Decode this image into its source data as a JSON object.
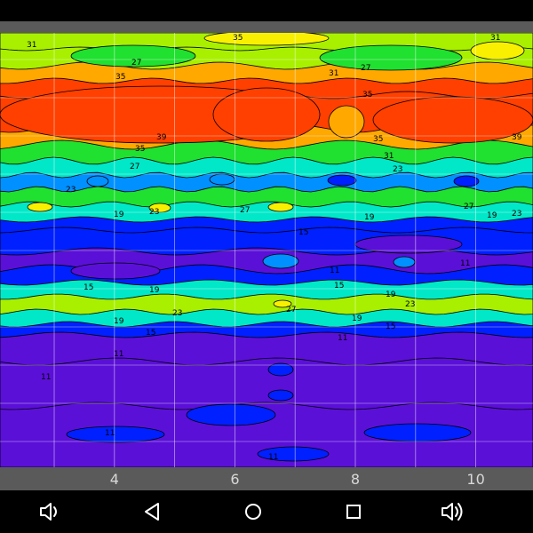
{
  "chart_data": {
    "type": "heatmap",
    "plot_style": "filled-contour",
    "title": "",
    "xlabel": "",
    "ylabel": "",
    "x_ticks": [
      4,
      6,
      8,
      10
    ],
    "xlim": [
      2.1,
      10.95
    ],
    "grid": true,
    "colors_low_to_high": [
      "#5b10d8",
      "#0020ff",
      "#0090ff",
      "#00e8c8",
      "#20e030",
      "#a8f000",
      "#f8f000",
      "#ffa800",
      "#ff4000"
    ],
    "bands": [
      {
        "name": "b0",
        "value": 31,
        "color": "#a8f000"
      },
      {
        "name": "b1",
        "value": 31,
        "color": "#a8f000"
      },
      {
        "name": "b2",
        "value": 35,
        "color": "#ffa800"
      },
      {
        "name": "b3",
        "value": 39,
        "color": "#ff4000"
      },
      {
        "name": "b4",
        "value": 39,
        "color": "#ff4000"
      },
      {
        "name": "b5",
        "value": 35,
        "color": "#ffa800"
      },
      {
        "name": "b6",
        "value": 27,
        "color": "#20e030"
      },
      {
        "name": "b7",
        "value": 23,
        "color": "#00e8c8"
      },
      {
        "name": "b8",
        "value": 19,
        "color": "#0090ff"
      },
      {
        "name": "b9",
        "value": 23,
        "color": "#20e030"
      },
      {
        "name": "b10",
        "value": 19,
        "color": "#00e8c8"
      },
      {
        "name": "b11",
        "value": 15,
        "color": "#0020ff"
      },
      {
        "name": "b12",
        "value": 15,
        "color": "#0020ff"
      },
      {
        "name": "b13",
        "value": 11,
        "color": "#5b10d8"
      },
      {
        "name": "b14",
        "value": 15,
        "color": "#0020ff"
      },
      {
        "name": "b15",
        "value": 19,
        "color": "#00e8c8"
      },
      {
        "name": "b16",
        "value": 23,
        "color": "#a8f000"
      },
      {
        "name": "b17",
        "value": 19,
        "color": "#00e8c8"
      },
      {
        "name": "b18",
        "value": 15,
        "color": "#0020ff"
      },
      {
        "name": "b19",
        "value": 11,
        "color": "#5b10d8"
      },
      {
        "name": "b20",
        "value": 11,
        "color": "#5b10d8"
      },
      {
        "name": "b21",
        "value": 11,
        "color": "#5b10d8"
      }
    ],
    "blobs": [
      {
        "name": "yellow-top-right",
        "color": "#f8f000"
      },
      {
        "name": "yellow-top-mid",
        "color": "#f8f000"
      },
      {
        "name": "green-top-left",
        "color": "#20e030"
      },
      {
        "name": "green-top-right",
        "color": "#20e030"
      },
      {
        "name": "red-left",
        "color": "#ff4000"
      },
      {
        "name": "red-mid",
        "color": "#ff4000"
      },
      {
        "name": "orange-gap",
        "color": "#ffa800"
      },
      {
        "name": "red-right",
        "color": "#ff4000"
      },
      {
        "name": "cyan-spot-1",
        "color": "#0090ff"
      },
      {
        "name": "cyan-spot-2",
        "color": "#0090ff"
      },
      {
        "name": "blue-spot-1",
        "color": "#0020ff"
      },
      {
        "name": "blue-spot-2",
        "color": "#0020ff"
      },
      {
        "name": "yellow-spot-1",
        "color": "#f8f000"
      },
      {
        "name": "yellow-spot-2",
        "color": "#f8f000"
      },
      {
        "name": "yellow-spot-3",
        "color": "#f8f000"
      },
      {
        "name": "purple-patch-1",
        "color": "#5b10d8"
      },
      {
        "name": "purple-patch-2",
        "color": "#5b10d8"
      },
      {
        "name": "cyan-blob-1",
        "color": "#0090ff"
      },
      {
        "name": "cyan-blob-2",
        "color": "#0090ff"
      },
      {
        "name": "yellow-spot-4",
        "color": "#f8f000"
      },
      {
        "name": "blue-patch-1",
        "color": "#0020ff"
      },
      {
        "name": "blue-patch-2",
        "color": "#0020ff"
      },
      {
        "name": "blue-patch-3",
        "color": "#0020ff"
      },
      {
        "name": "blue-patch-4",
        "color": "#0020ff"
      },
      {
        "name": "blue-patch-5",
        "color": "#0020ff"
      },
      {
        "name": "blue-patch-6",
        "color": "#0020ff"
      }
    ],
    "contour_labels": [
      {
        "text": "31"
      },
      {
        "text": "35"
      },
      {
        "text": "27"
      },
      {
        "text": "31"
      },
      {
        "text": "27"
      },
      {
        "text": "31"
      },
      {
        "text": "35"
      },
      {
        "text": "35"
      },
      {
        "text": "39"
      },
      {
        "text": "35"
      },
      {
        "text": "39"
      },
      {
        "text": "35"
      },
      {
        "text": "27"
      },
      {
        "text": "31"
      },
      {
        "text": "23"
      },
      {
        "text": "23"
      },
      {
        "text": "19"
      },
      {
        "text": "19"
      },
      {
        "text": "23"
      },
      {
        "text": "27"
      },
      {
        "text": "19"
      },
      {
        "text": "27"
      },
      {
        "text": "23"
      },
      {
        "text": "15"
      },
      {
        "text": "11"
      },
      {
        "text": "11"
      },
      {
        "text": "15"
      },
      {
        "text": "19"
      },
      {
        "text": "15"
      },
      {
        "text": "19"
      },
      {
        "text": "23"
      },
      {
        "text": "27"
      },
      {
        "text": "23"
      },
      {
        "text": "19"
      },
      {
        "text": "19"
      },
      {
        "text": "15"
      },
      {
        "text": "15"
      },
      {
        "text": "11"
      },
      {
        "text": "11"
      },
      {
        "text": "11"
      },
      {
        "text": "11"
      },
      {
        "text": "11"
      }
    ]
  },
  "navigation_bar": {
    "buttons": [
      {
        "name": "volume-down-button",
        "icon": "volume-down-icon"
      },
      {
        "name": "back-button",
        "icon": "back-triangle-icon"
      },
      {
        "name": "home-button",
        "icon": "home-circle-icon"
      },
      {
        "name": "recents-button",
        "icon": "recents-square-icon"
      },
      {
        "name": "volume-up-button",
        "icon": "volume-up-icon"
      }
    ]
  },
  "colors": {
    "status_bar": "#000000",
    "axis_strip": "#5a5a5a",
    "axis_text": "#d8d8d8",
    "grid": "#ffffff",
    "contour_line": "#000000",
    "nav_icon": "#ffffff"
  }
}
